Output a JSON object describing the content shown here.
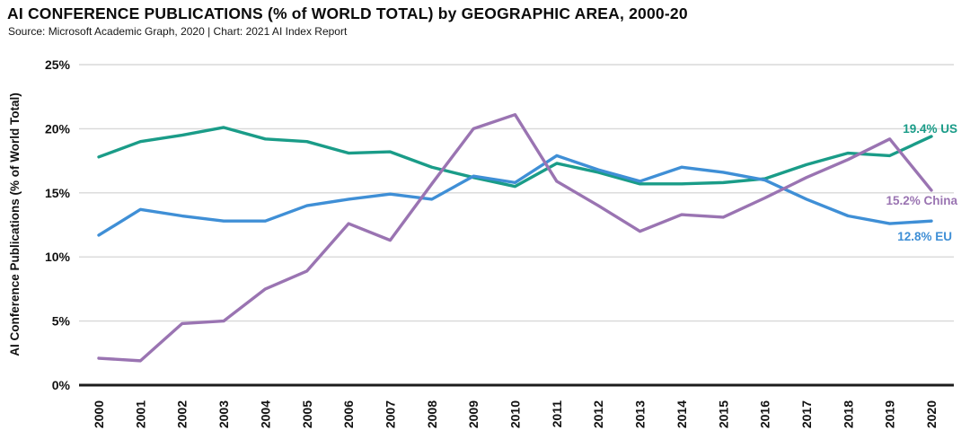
{
  "chart_data": {
    "type": "line",
    "title": "AI CONFERENCE PUBLICATIONS (% of WORLD TOTAL) by GEOGRAPHIC AREA, 2000-20",
    "subtitle": "Source: Microsoft Academic Graph, 2020 | Chart: 2021 AI Index Report",
    "xlabel": "",
    "ylabel": "AI Conference Publications (% of World Total)",
    "ylim": [
      0,
      25
    ],
    "yticks": [
      0,
      5,
      10,
      15,
      20,
      25
    ],
    "ytick_labels": [
      "0%",
      "5%",
      "10%",
      "15%",
      "20%",
      "25%"
    ],
    "grid": true,
    "legend_position": "line-end-labels",
    "x": [
      2000,
      2001,
      2002,
      2003,
      2004,
      2005,
      2006,
      2007,
      2008,
      2009,
      2010,
      2011,
      2012,
      2013,
      2014,
      2015,
      2016,
      2017,
      2018,
      2019,
      2020
    ],
    "series": [
      {
        "name": "US",
        "color": "#1a9c88",
        "end_label": "19.4% US",
        "values": [
          17.8,
          19.0,
          19.5,
          20.1,
          19.2,
          19.0,
          18.1,
          18.2,
          17.0,
          16.2,
          15.5,
          17.3,
          16.6,
          15.7,
          15.7,
          15.8,
          16.1,
          17.2,
          18.1,
          17.9,
          19.4
        ]
      },
      {
        "name": "EU",
        "color": "#3f8fd6",
        "end_label": "12.8% EU",
        "values": [
          11.7,
          13.7,
          13.2,
          12.8,
          12.8,
          14.0,
          14.5,
          14.9,
          14.5,
          16.3,
          15.8,
          17.9,
          16.8,
          15.9,
          17.0,
          16.6,
          16.0,
          14.5,
          13.2,
          12.6,
          12.8
        ]
      },
      {
        "name": "China",
        "color": "#9a74b2",
        "end_label": "15.2% China",
        "values": [
          2.1,
          1.9,
          4.8,
          5.0,
          7.5,
          8.9,
          12.6,
          11.3,
          15.7,
          20.0,
          21.1,
          15.9,
          14.0,
          12.0,
          13.3,
          13.1,
          14.6,
          16.2,
          17.6,
          19.2,
          15.2
        ]
      }
    ]
  },
  "axis_colors": {
    "gridline": "#d8d8d8",
    "baseline": "#1c1c1c",
    "tick_text": "#111111"
  }
}
